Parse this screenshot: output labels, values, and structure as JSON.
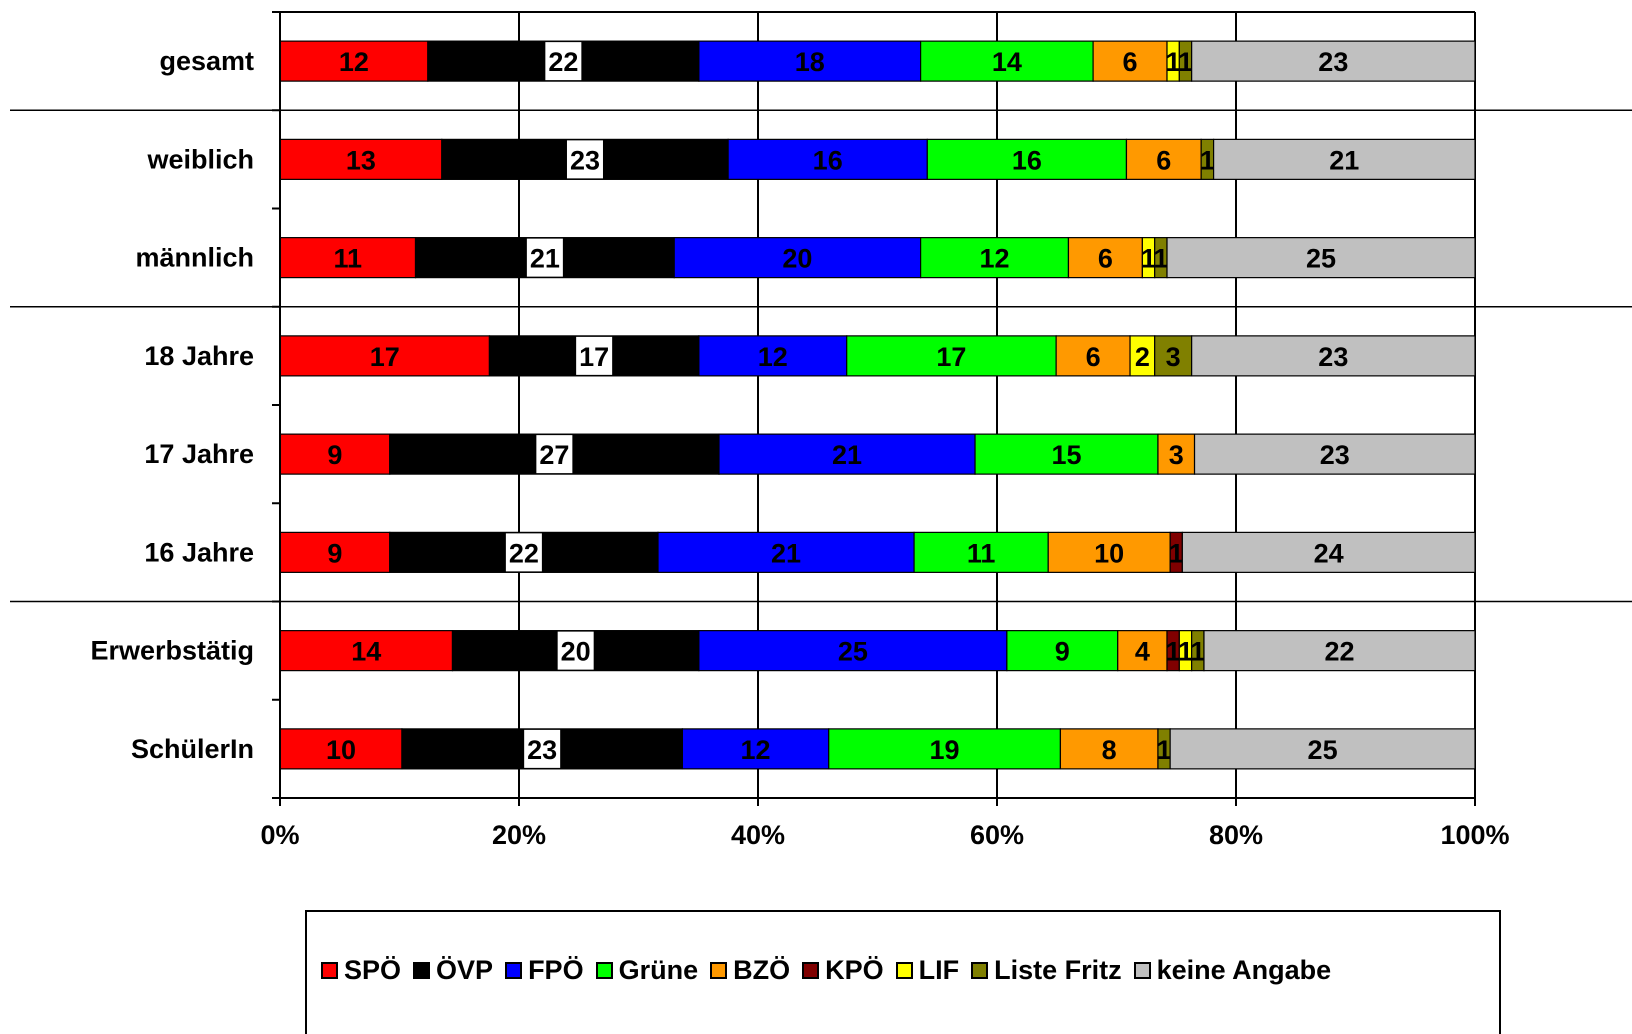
{
  "chart_data": {
    "type": "bar",
    "orientation": "horizontal",
    "stacked": "percent",
    "categories": [
      "gesamt",
      "weiblich",
      "männlich",
      "18 Jahre",
      "17 Jahre",
      "16 Jahre",
      "Erwerbstätig",
      "SchülerIn"
    ],
    "series": [
      {
        "name": "SPÖ",
        "color": "#ff0000",
        "label_color": "#000000",
        "values": [
          12,
          13,
          11,
          17,
          9,
          9,
          14,
          10
        ]
      },
      {
        "name": "ÖVP",
        "color": "#000000",
        "label_color": "#000000",
        "values": [
          22,
          23,
          21,
          17,
          27,
          22,
          20,
          23
        ]
      },
      {
        "name": "FPÖ",
        "color": "#0000ff",
        "label_color": "#000000",
        "values": [
          18,
          16,
          20,
          12,
          21,
          21,
          25,
          12
        ]
      },
      {
        "name": "Grüne",
        "color": "#00ff00",
        "label_color": "#000000",
        "values": [
          14,
          16,
          12,
          17,
          15,
          11,
          9,
          19
        ]
      },
      {
        "name": "BZÖ",
        "color": "#ff9900",
        "label_color": "#000000",
        "values": [
          6,
          6,
          6,
          6,
          3,
          10,
          4,
          8
        ]
      },
      {
        "name": "KPÖ",
        "color": "#800000",
        "label_color": "#000000",
        "values": [
          0,
          0,
          0,
          0,
          0,
          1,
          1,
          0
        ]
      },
      {
        "name": "LIF",
        "color": "#ffff00",
        "label_color": "#000000",
        "values": [
          1,
          0,
          1,
          2,
          0,
          0,
          1,
          0
        ]
      },
      {
        "name": "Liste Fritz",
        "color": "#808000",
        "label_color": "#000000",
        "values": [
          1,
          1,
          1,
          3,
          0,
          0,
          1,
          1
        ]
      },
      {
        "name": "keine Angabe",
        "color": "#c0c0c0",
        "label_color": "#000000",
        "values": [
          23,
          21,
          25,
          23,
          23,
          24,
          22,
          25
        ]
      }
    ],
    "x_ticks": [
      "0%",
      "20%",
      "40%",
      "60%",
      "80%",
      "100%"
    ],
    "xlim": [
      0,
      100
    ],
    "grid": "vertical",
    "group_separators_after": [
      "gesamt",
      "männlich",
      "16 Jahre"
    ],
    "legend_position": "bottom",
    "title": "",
    "xlabel": "",
    "ylabel": ""
  }
}
